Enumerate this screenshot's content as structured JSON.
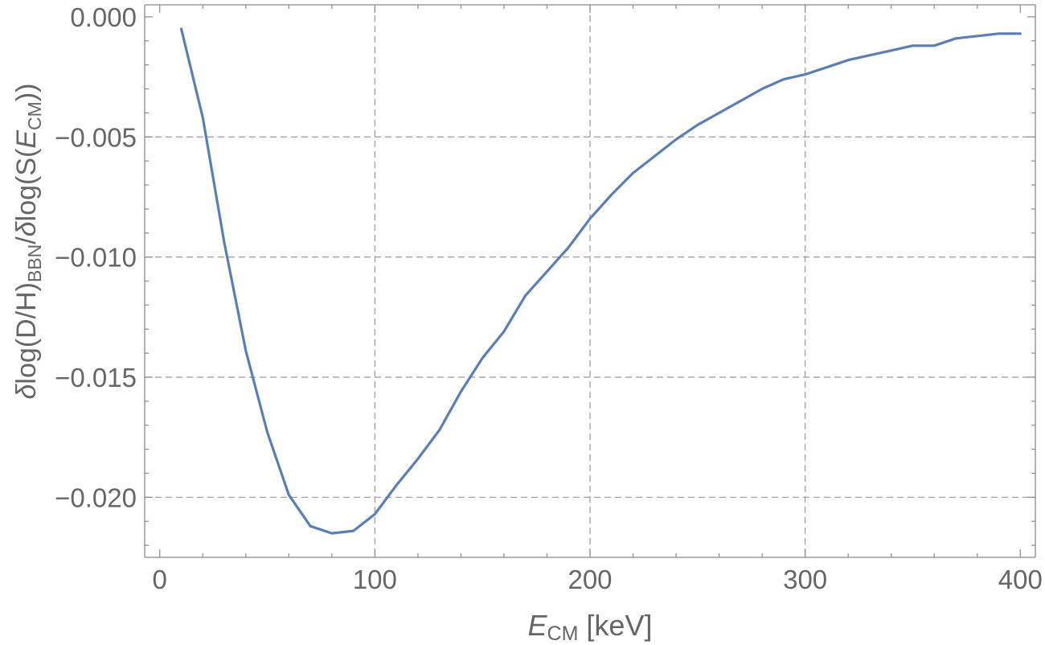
{
  "chart_data": {
    "type": "line",
    "xlabel": {
      "main": "E",
      "sub": "CM",
      "suffix": " [keV]"
    },
    "ylabel": "δlog(D/H)BBN/δlog(S(ECM))",
    "xlim": [
      -7,
      407
    ],
    "ylim": [
      -0.0225,
      0.0005
    ],
    "grid": true,
    "x_ticks": [
      0,
      100,
      200,
      300,
      400
    ],
    "x_tick_labels": [
      "0",
      "100",
      "200",
      "300",
      "400"
    ],
    "y_ticks": [
      0.0,
      -0.005,
      -0.01,
      -0.015,
      -0.02
    ],
    "y_tick_labels": [
      "0.000",
      "−0.005",
      "−0.010",
      "−0.015",
      "−0.020"
    ],
    "x_grid": [
      100,
      200,
      300
    ],
    "y_grid": [
      -0.005,
      -0.01,
      -0.015,
      -0.02
    ],
    "series": [
      {
        "color": "#5b7fb5",
        "x": [
          10,
          20,
          30,
          40,
          50,
          60,
          70,
          80,
          90,
          100,
          110,
          120,
          130,
          140,
          150,
          160,
          170,
          180,
          190,
          200,
          210,
          220,
          230,
          240,
          250,
          260,
          270,
          280,
          290,
          300,
          310,
          320,
          330,
          340,
          350,
          360,
          370,
          380,
          390,
          400
        ],
        "y": [
          -0.0005,
          -0.0042,
          -0.0094,
          -0.0139,
          -0.0173,
          -0.0199,
          -0.0212,
          -0.0215,
          -0.0214,
          -0.0207,
          -0.0195,
          -0.0184,
          -0.0172,
          -0.0156,
          -0.0142,
          -0.0131,
          -0.0116,
          -0.0106,
          -0.0096,
          -0.0084,
          -0.0074,
          -0.0065,
          -0.0058,
          -0.0051,
          -0.0045,
          -0.004,
          -0.0035,
          -0.003,
          -0.0026,
          -0.0024,
          -0.0021,
          -0.0018,
          -0.0016,
          -0.0014,
          -0.0012,
          -0.0012,
          -0.0009,
          -0.0008,
          -0.0007,
          -0.0007
        ]
      }
    ]
  }
}
